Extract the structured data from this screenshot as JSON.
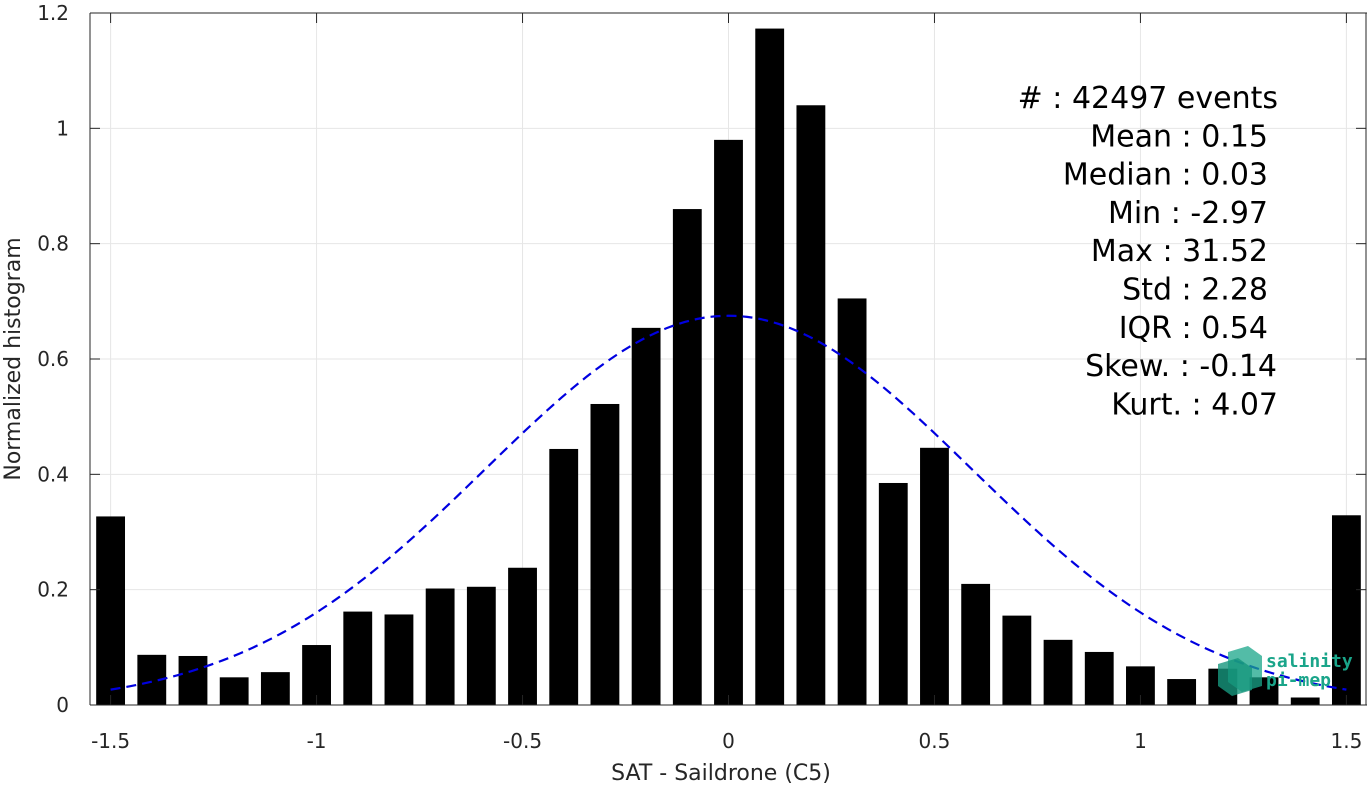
{
  "chart_data": {
    "type": "bar",
    "xlabel": "SAT - Saildrone (C5)",
    "ylabel": "Normalized histogram",
    "xlim": [
      -1.55,
      1.55
    ],
    "ylim": [
      0,
      1.2
    ],
    "x_ticks": [
      -1.5,
      -1,
      -0.5,
      0,
      0.5,
      1,
      1.5
    ],
    "x_tick_labels": [
      "-1.5",
      "-1",
      "-0.5",
      "0",
      "0.5",
      "1",
      "1.5"
    ],
    "y_ticks": [
      0,
      0.2,
      0.4,
      0.6,
      0.8,
      1,
      1.2
    ],
    "y_tick_labels": [
      "0",
      "0.2",
      "0.4",
      "0.6",
      "0.8",
      "1",
      "1.2"
    ],
    "grid": true,
    "bar_color": "#000000",
    "bin_width": 0.1,
    "bins": [
      {
        "x": -1.5,
        "value": 0.327
      },
      {
        "x": -1.4,
        "value": 0.087
      },
      {
        "x": -1.3,
        "value": 0.085
      },
      {
        "x": -1.2,
        "value": 0.048
      },
      {
        "x": -1.1,
        "value": 0.057
      },
      {
        "x": -1.0,
        "value": 0.104
      },
      {
        "x": -0.9,
        "value": 0.162
      },
      {
        "x": -0.8,
        "value": 0.157
      },
      {
        "x": -0.7,
        "value": 0.202
      },
      {
        "x": -0.6,
        "value": 0.205
      },
      {
        "x": -0.5,
        "value": 0.238
      },
      {
        "x": -0.4,
        "value": 0.444
      },
      {
        "x": -0.3,
        "value": 0.522
      },
      {
        "x": -0.2,
        "value": 0.654
      },
      {
        "x": -0.1,
        "value": 0.86
      },
      {
        "x": 0.0,
        "value": 0.98
      },
      {
        "x": 0.1,
        "value": 1.173
      },
      {
        "x": 0.2,
        "value": 1.04
      },
      {
        "x": 0.3,
        "value": 0.705
      },
      {
        "x": 0.4,
        "value": 0.385
      },
      {
        "x": 0.5,
        "value": 0.446
      },
      {
        "x": 0.6,
        "value": 0.21
      },
      {
        "x": 0.7,
        "value": 0.155
      },
      {
        "x": 0.8,
        "value": 0.113
      },
      {
        "x": 0.9,
        "value": 0.092
      },
      {
        "x": 1.0,
        "value": 0.067
      },
      {
        "x": 1.1,
        "value": 0.045
      },
      {
        "x": 1.2,
        "value": 0.063
      },
      {
        "x": 1.3,
        "value": 0.048
      },
      {
        "x": 1.4,
        "value": 0.013
      },
      {
        "x": 1.5,
        "value": 0.329
      }
    ],
    "fit_curve": {
      "style": "dashed",
      "color": "#0000e0",
      "mean": 0.0,
      "peak": 0.675,
      "sigma": 0.59,
      "x_range": [
        -1.5,
        1.5
      ]
    },
    "annotations": [
      "#  : 42497 events",
      "Mean : 0.15",
      "Median : 0.03",
      "Min : -2.97",
      "Max : 31.52",
      "Std : 2.28",
      "IQR : 0.54",
      "Skew. : -0.14",
      "Kurt. : 4.07"
    ]
  },
  "logo": {
    "line1": "salinity",
    "line2": "pi-mep",
    "color": "#1aa58a"
  }
}
